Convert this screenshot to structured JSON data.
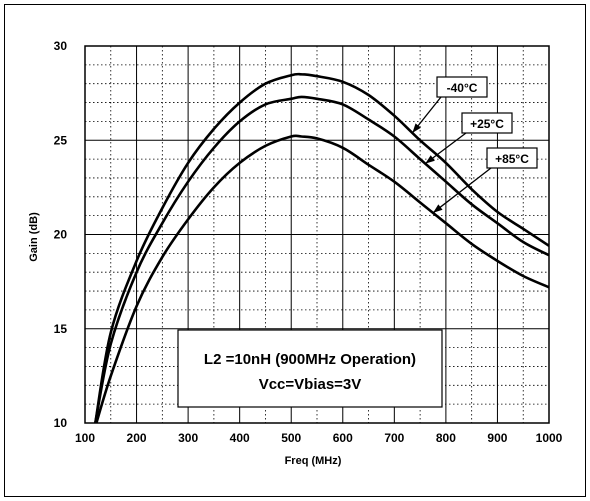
{
  "chart_data": {
    "type": "line",
    "title": "",
    "xlabel": "Freq (MHz)",
    "ylabel": "Gain (dB)",
    "xlim": [
      100,
      1000
    ],
    "ylim": [
      10,
      30
    ],
    "x_ticks": [
      100,
      200,
      300,
      400,
      500,
      600,
      700,
      800,
      900,
      1000
    ],
    "y_ticks": [
      10,
      15,
      20,
      25,
      30
    ],
    "grid": true,
    "x": [
      120,
      150,
      200,
      250,
      300,
      350,
      400,
      450,
      500,
      520,
      550,
      600,
      650,
      700,
      750,
      800,
      850,
      900,
      950,
      1000
    ],
    "series": [
      {
        "name": "-40°C",
        "values": [
          10.0,
          14.8,
          18.6,
          21.4,
          23.8,
          25.6,
          27.0,
          28.0,
          28.45,
          28.5,
          28.4,
          28.1,
          27.4,
          26.3,
          25.0,
          23.8,
          22.4,
          21.2,
          20.3,
          19.4
        ]
      },
      {
        "name": "+25°C",
        "values": [
          10.0,
          14.2,
          18.0,
          20.6,
          22.8,
          24.6,
          26.0,
          26.9,
          27.2,
          27.3,
          27.2,
          26.9,
          26.1,
          25.2,
          24.0,
          22.8,
          21.6,
          20.6,
          19.6,
          18.9
        ]
      },
      {
        "name": "+85°C",
        "values": [
          9.8,
          12.5,
          16.2,
          18.8,
          20.8,
          22.5,
          23.8,
          24.7,
          25.2,
          25.2,
          25.1,
          24.6,
          23.7,
          22.8,
          21.7,
          20.6,
          19.5,
          18.6,
          17.8,
          17.2
        ]
      }
    ],
    "callouts": [
      {
        "label": "-40°C",
        "series": 0,
        "x": 735
      },
      {
        "label": "+25°C",
        "series": 1,
        "x": 760
      },
      {
        "label": "+85°C",
        "series": 2,
        "x": 775
      }
    ],
    "note": {
      "line1": "L2 =10nH (900MHz Operation)",
      "line2": "Vcc=Vbias=3V"
    },
    "colors": {
      "line": "#000000",
      "grid": "#000000",
      "background": "#ffffff"
    }
  }
}
